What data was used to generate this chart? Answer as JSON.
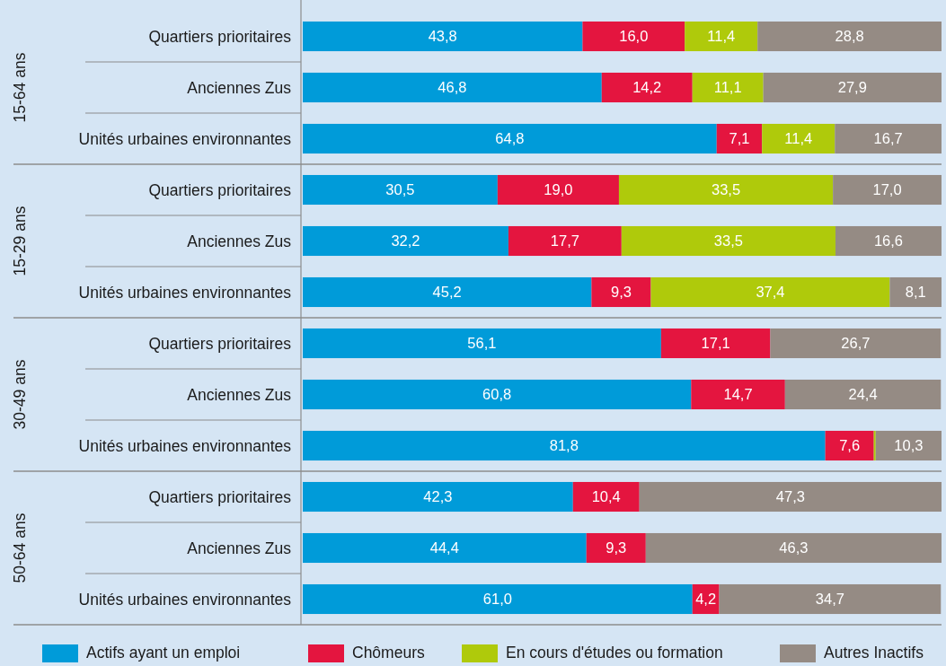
{
  "chart_data": {
    "type": "bar",
    "orientation": "horizontal",
    "stacked": true,
    "legend": "bottom",
    "tick_labels": "y",
    "xlim": [
      0,
      100
    ],
    "categories": [
      "Quartiers prioritaires",
      "Anciennes Zus",
      "Unités urbaines environnantes",
      "Quartiers prioritaires",
      "Anciennes Zus",
      "Unités urbaines environnantes",
      "Quartiers prioritaires",
      "Anciennes Zus",
      "Unités urbaines environnantes",
      "Quartiers prioritaires",
      "Anciennes Zus",
      "Unités urbaines environnantes"
    ],
    "annotations": [
      "15-64 ans",
      "15-29 ans",
      "30-49 ans",
      "50-64 ans"
    ],
    "series": [
      {
        "name": "Actifs ayant un emploi",
        "color": "#009bd9",
        "values": [
          43.8,
          46.8,
          64.8,
          30.5,
          32.2,
          45.2,
          56.1,
          60.8,
          81.8,
          42.3,
          44.4,
          61.0
        ],
        "value_labels": [
          "43,8",
          "46,8",
          "64,8",
          "30,5",
          "32,2",
          "45,2",
          "56,1",
          "60,8",
          "81,8",
          "42,3",
          "44,4",
          "61,0"
        ]
      },
      {
        "name": "Chômeurs",
        "color": "#e4153f",
        "values": [
          16.0,
          14.2,
          7.1,
          19.0,
          17.7,
          9.3,
          17.1,
          14.7,
          7.6,
          10.4,
          9.3,
          4.2
        ],
        "value_labels": [
          "16,0",
          "14,2",
          "7,1",
          "19,0",
          "17,7",
          "9,3",
          "17,1",
          "14,7",
          "7,6",
          "10,4",
          "9,3",
          "4,2"
        ]
      },
      {
        "name": "En cours d'études ou formation",
        "color": "#afca0b",
        "values": [
          11.4,
          11.1,
          11.4,
          33.5,
          33.5,
          37.4,
          null,
          null,
          0.3,
          null,
          null,
          null
        ],
        "value_labels": [
          "11,4",
          "11,1",
          "11,4",
          "33,5",
          "33,5",
          "37,4",
          null,
          null,
          null,
          null,
          null,
          null
        ]
      },
      {
        "name": "Autres Inactifs",
        "color": "#958b84",
        "values": [
          28.8,
          27.9,
          16.7,
          17.0,
          16.6,
          8.1,
          26.7,
          24.4,
          10.3,
          47.3,
          46.3,
          34.7
        ],
        "value_labels": [
          "28,8",
          "27,9",
          "16,7",
          "17,0",
          "16,6",
          "8,1",
          "26,7",
          "24,4",
          "10,3",
          "47,3",
          "46,3",
          "34,7"
        ]
      }
    ]
  }
}
